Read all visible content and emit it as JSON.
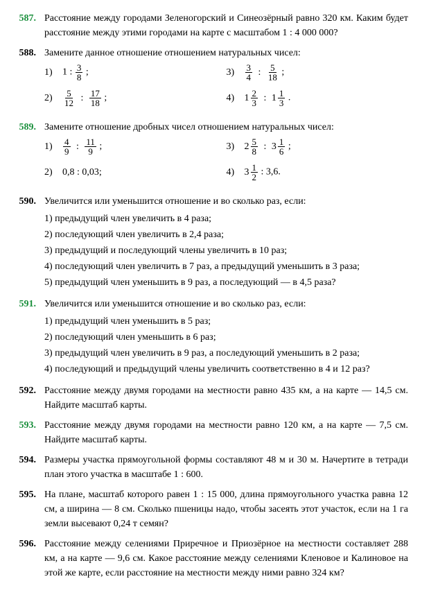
{
  "problems": {
    "p587": {
      "num": "587.",
      "color": "green",
      "text": "Расстояние между городами Зеленогорский и Синеозёрный равно 320 км. Каким будет расстояние между этими городами на карте с масштабом 1 : 4 000 000?"
    },
    "p588": {
      "num": "588.",
      "color": "black",
      "text": "Замените данное отношение отношением натуральных чисел:",
      "items": {
        "i1": "1)",
        "i1v": "1 :",
        "f1n": "3",
        "f1d": "8",
        "e1": ";",
        "i3": "3)",
        "f3an": "3",
        "f3ad": "4",
        "r3": ":",
        "f3bn": "5",
        "f3bd": "18",
        "e3": ";",
        "i2": "2)",
        "f2an": "5",
        "f2ad": "12",
        "r2": ":",
        "f2bn": "17",
        "f2bd": "18",
        "e2": ";",
        "i4": "4)",
        "m4aw": "1",
        "m4an": "2",
        "m4ad": "3",
        "r4": ":",
        "m4bw": "1",
        "m4bn": "1",
        "m4bd": "3",
        "e4": "."
      }
    },
    "p589": {
      "num": "589.",
      "color": "green",
      "text": "Замените отношение дробных чисел отношением натуральных чисел:",
      "items": {
        "i1": "1)",
        "f1an": "4",
        "f1ad": "9",
        "r1": ":",
        "f1bn": "11",
        "f1bd": "9",
        "e1": ";",
        "i3": "3)",
        "m3aw": "2",
        "m3an": "5",
        "m3ad": "8",
        "r3": ":",
        "m3bw": "3",
        "m3bn": "1",
        "m3bd": "6",
        "e3": ";",
        "i2": "2)",
        "v2": "0,8 : 0,03;",
        "i4": "4)",
        "m4aw": "3",
        "m4an": "1",
        "m4ad": "2",
        "v4": ": 3,6."
      }
    },
    "p590": {
      "num": "590.",
      "color": "black",
      "text": "Увеличится или уменьшится отношение и во сколько раз, если:",
      "list": {
        "l1": "1) предыдущий член увеличить в 4 раза;",
        "l2": "2) последующий член увеличить в 2,4 раза;",
        "l3": "3) предыдущий и последующий члены увеличить в 10 раз;",
        "l4": "4) последующий член увеличить в 7 раз, а предыдущий уменьшить в 3 раза;",
        "l5": "5) предыдущий член уменьшить в 9 раз, а последующий — в 4,5 раза?"
      }
    },
    "p591": {
      "num": "591.",
      "color": "green",
      "text": "Увеличится или уменьшится отношение и во сколько раз, если:",
      "list": {
        "l1": "1) предыдущий член уменьшить в 5 раз;",
        "l2": "2) последующий член уменьшить в 6 раз;",
        "l3": "3) предыдущий член увеличить в 9 раз, а последующий уменьшить в 2 раза;",
        "l4": "4) последующий и предыдущий члены увеличить соответственно в 4 и 12 раз?"
      }
    },
    "p592": {
      "num": "592.",
      "color": "black",
      "text": "Расстояние между двумя городами на местности равно 435 км, а на карте — 14,5 см. Найдите масштаб карты."
    },
    "p593": {
      "num": "593.",
      "color": "green",
      "text": "Расстояние между двумя городами на местности равно 120 км, а на карте — 7,5 см. Найдите масштаб карты."
    },
    "p594": {
      "num": "594.",
      "color": "black",
      "text": "Размеры участка прямоугольной формы составляют 48 м и 30 м. Начертите в тетради план этого участка в масштабе 1 : 600."
    },
    "p595": {
      "num": "595.",
      "color": "black",
      "text": "На плане, масштаб которого равен 1 : 15 000, длина прямоугольного участка равна 12 см, а ширина — 8 см. Сколько пшеницы надо, чтобы засеять этот участок, если на 1 га земли высевают 0,24 т семян?"
    },
    "p596": {
      "num": "596.",
      "color": "black",
      "text": "Расстояние между селениями Приречное и Приозёрное на местности составляет 288 км, а на карте — 9,6 см. Какое расстояние между селениями Кленовое и Калиновое на этой же карте, если расстояние на местности между ними равно 324 км?"
    }
  }
}
